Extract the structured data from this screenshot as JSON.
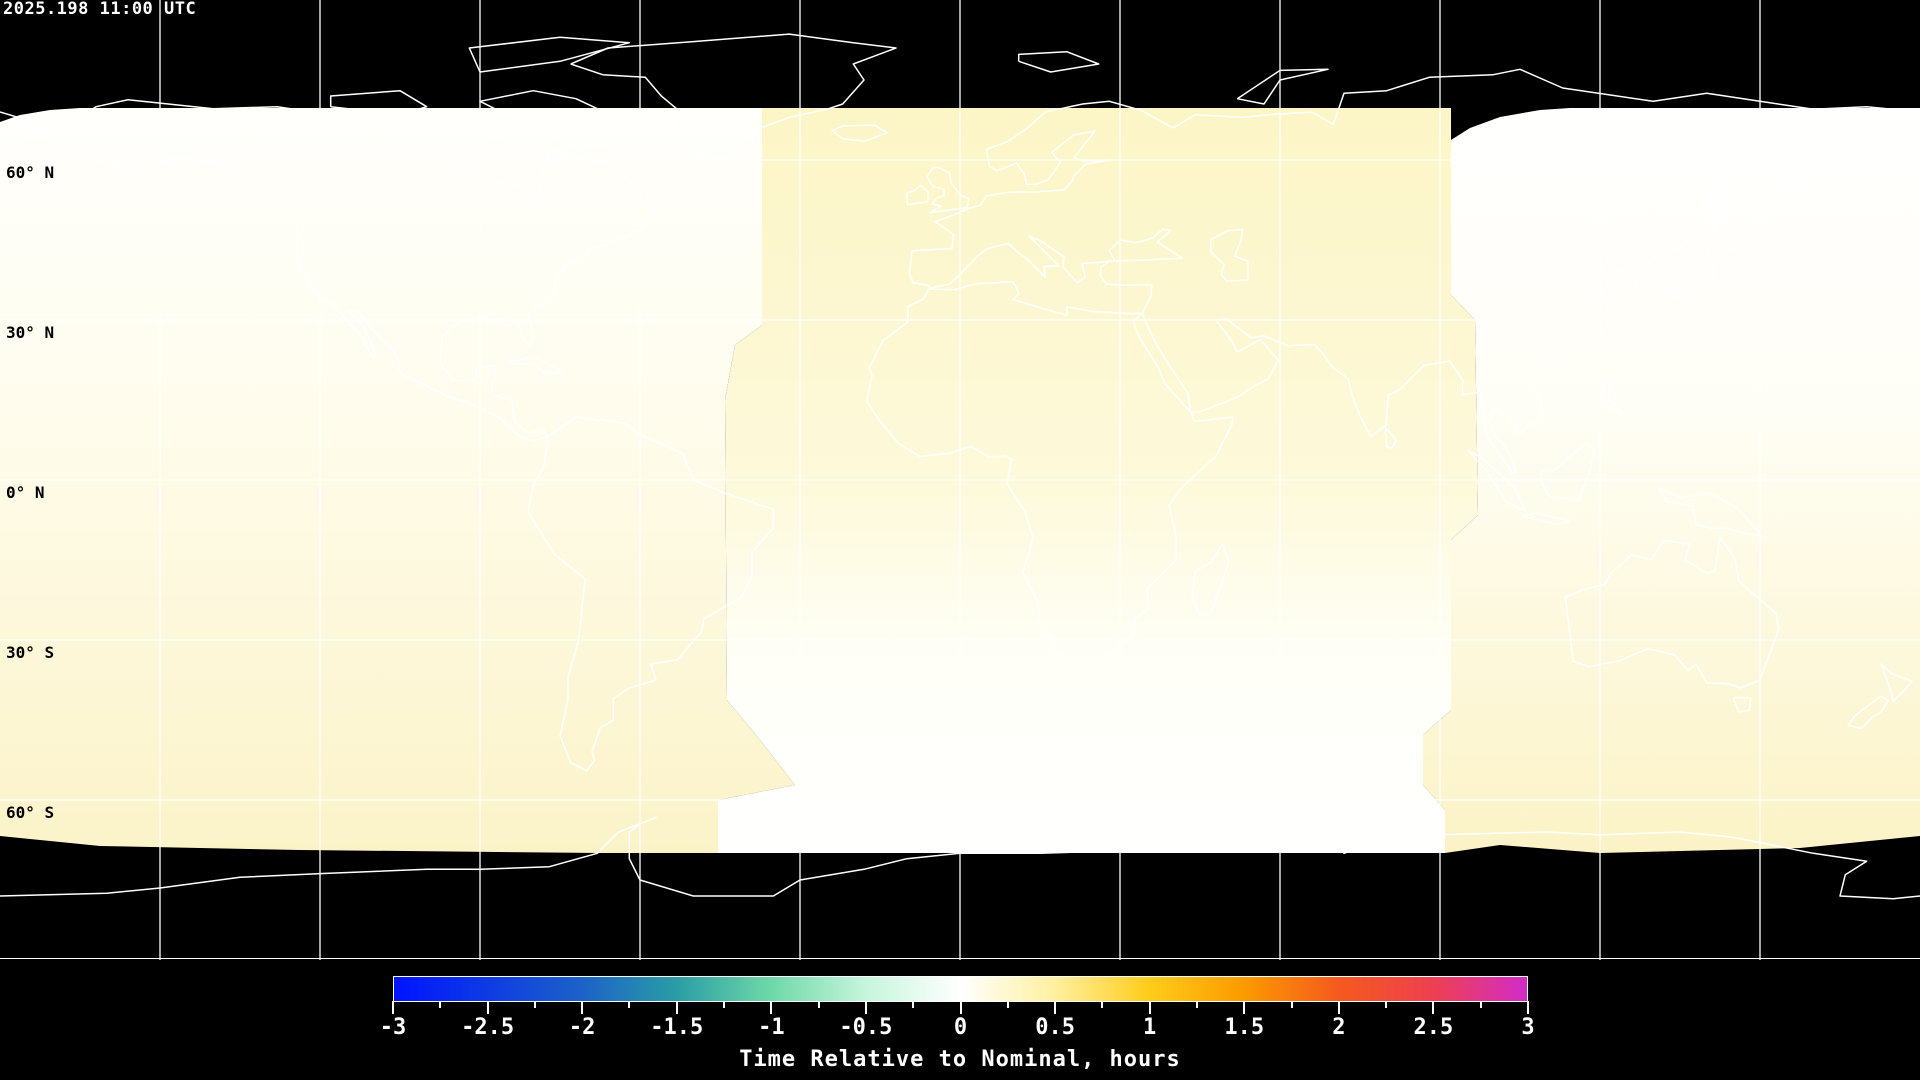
{
  "timestamp": "2025.198 11:00 UTC",
  "lat_labels": [
    "60° N",
    "30° N",
    "0° N",
    "30° S",
    "60° S"
  ],
  "colorbar": {
    "title": "Time Relative to Nominal, hours",
    "tick_labels": [
      "-3",
      "-2.5",
      "-2",
      "-1.5",
      "-1",
      "-0.5",
      "0",
      "0.5",
      "1",
      "1.5",
      "2",
      "2.5",
      "3"
    ],
    "range": [
      -3,
      3
    ],
    "colors": {
      "-3": "#0014ff",
      "-2": "#1d62c8",
      "-1.5": "#2a9ea5",
      "-1": "#6fd8a8",
      "-0.5": "#c6f5dc",
      "0": "#ffffff",
      "0.5": "#fff0a0",
      "1": "#ffcc1a",
      "1.5": "#fb9a00",
      "2": "#f55a1e",
      "2.5": "#ee4050",
      "3": "#d22cc8"
    }
  },
  "map": {
    "projection": "equirectangular",
    "grid_spacing_degrees": 30,
    "background_color": "#000000",
    "coverage_colors": {
      "near_zero": "#fffffa",
      "slightly_late": "#fcf5c8"
    }
  }
}
